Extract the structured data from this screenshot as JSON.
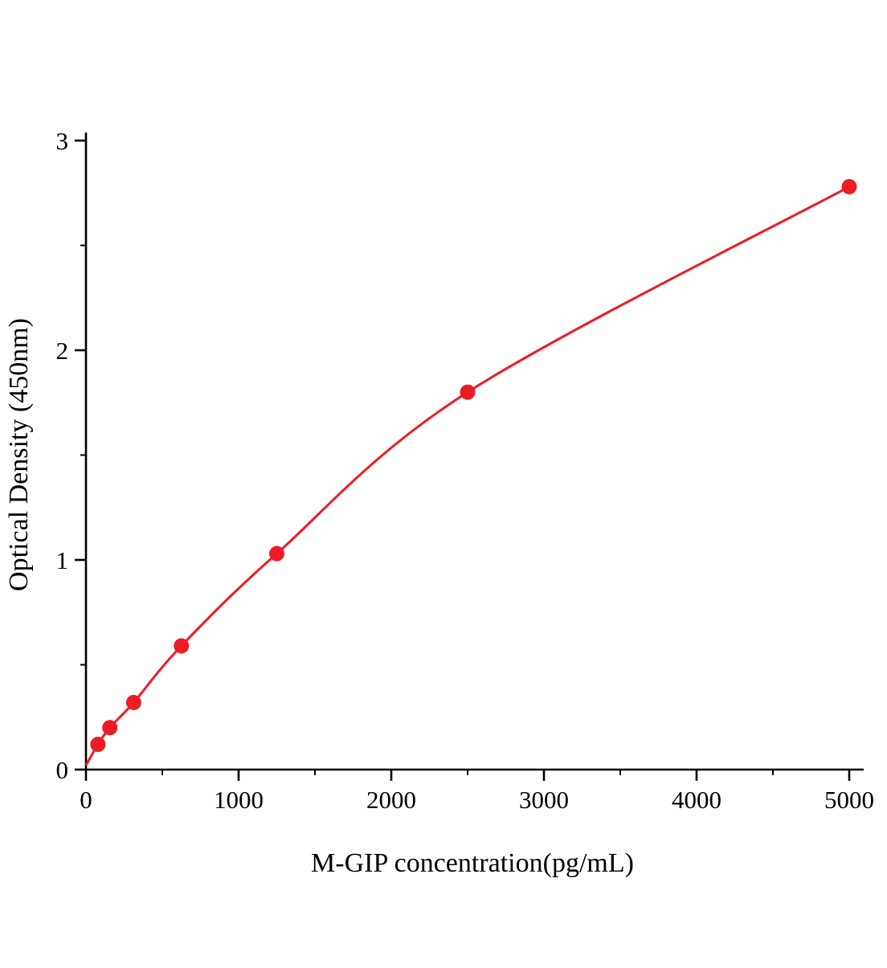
{
  "chart_data": {
    "type": "line",
    "title": "",
    "xlabel": "M-GIP concentration(pg/mL)",
    "ylabel": "Optical Density (450nm)",
    "x": [
      0,
      78.13,
      156.25,
      312.5,
      625,
      1250,
      2500,
      5000
    ],
    "y": [
      0.02,
      0.12,
      0.2,
      0.32,
      0.59,
      1.03,
      1.8,
      2.78
    ],
    "show_marker": [
      false,
      true,
      true,
      true,
      true,
      true,
      true,
      true
    ],
    "xlim": [
      0,
      5000
    ],
    "ylim": [
      0,
      3
    ],
    "x_ticks": [
      0,
      1000,
      2000,
      3000,
      4000,
      5000
    ],
    "y_ticks": [
      0,
      1,
      2,
      3
    ],
    "x_minor_step": 500,
    "y_minor_step": 0.5,
    "grid": false,
    "legend": null,
    "series_color": "#ed1c24",
    "marker": "circle",
    "marker_radius": 9.5
  }
}
